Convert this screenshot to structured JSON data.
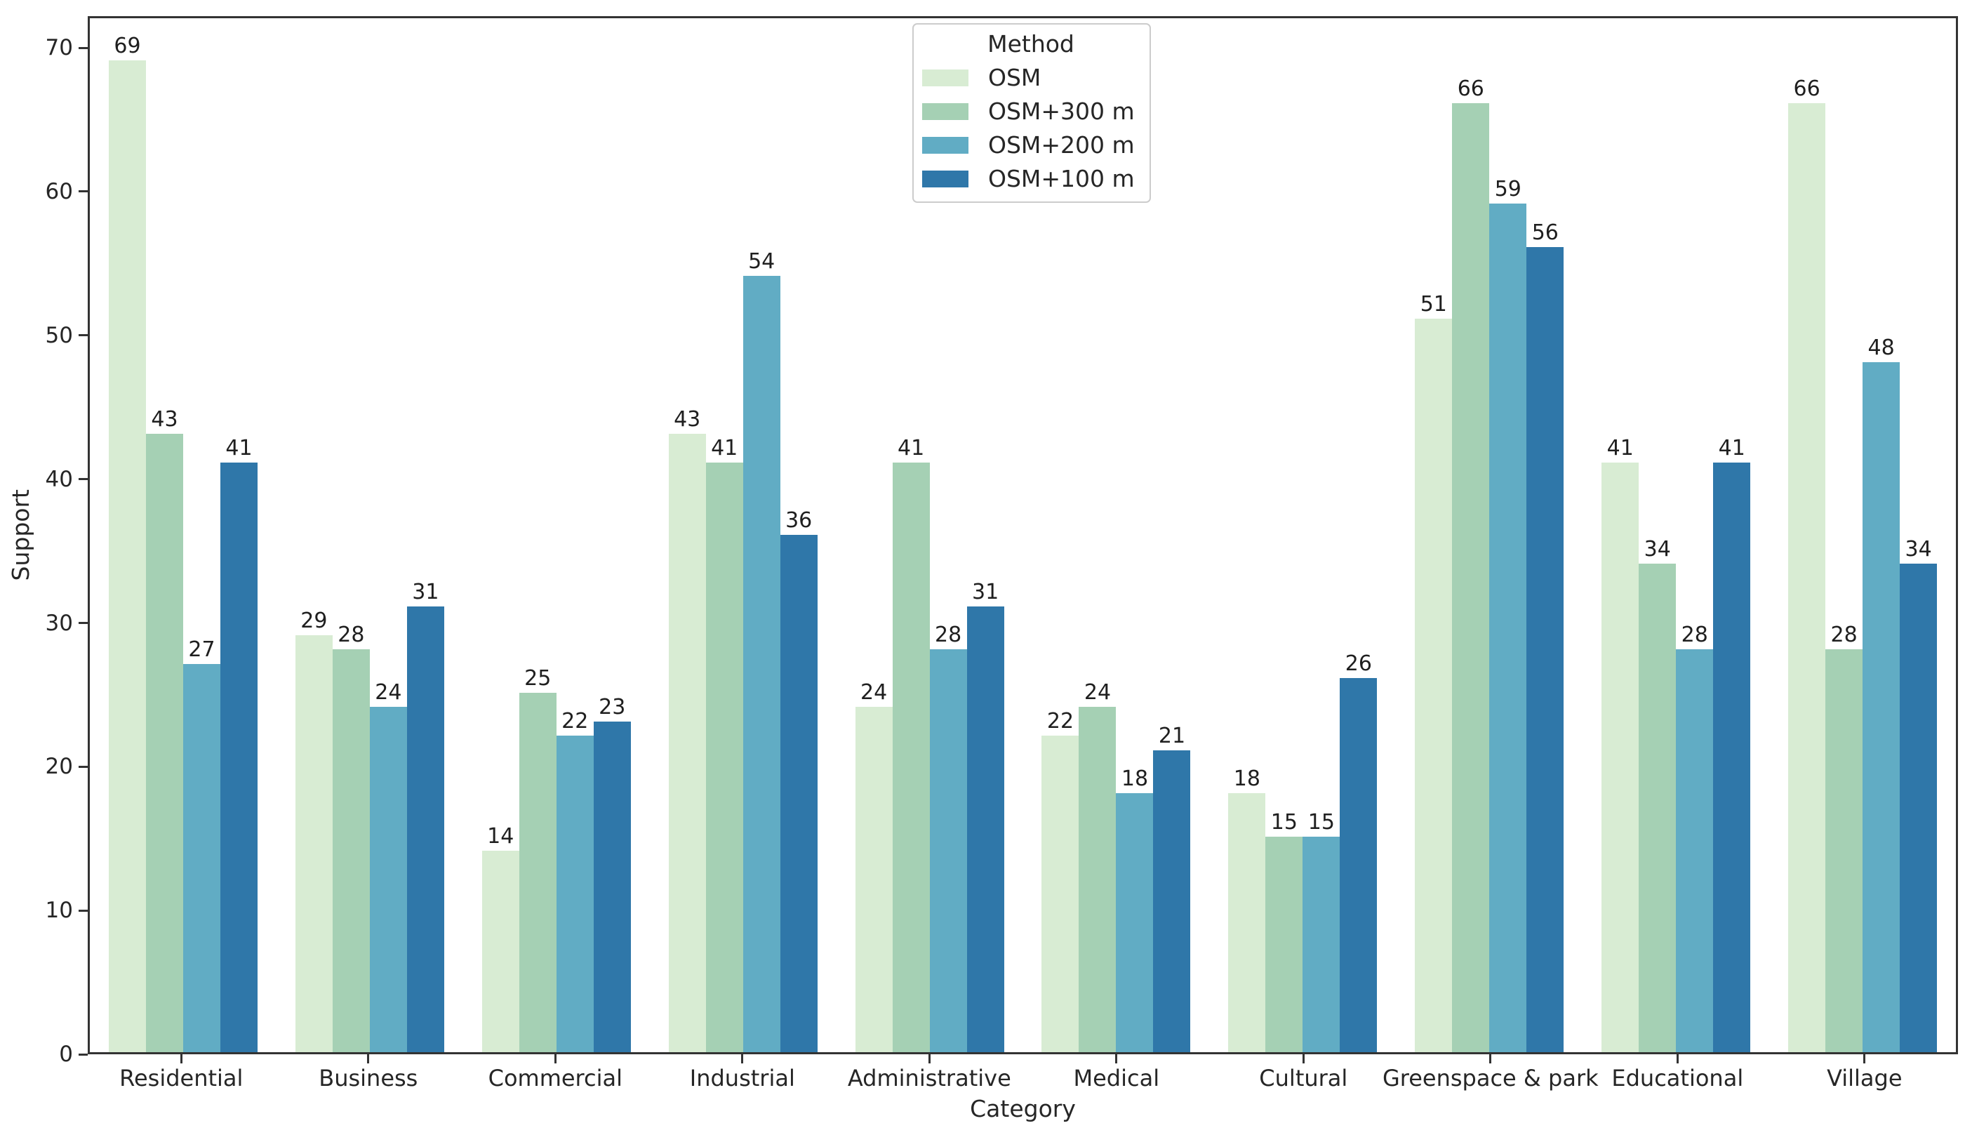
{
  "figure": {
    "xlabel": "Category",
    "ylabel": "Support",
    "legend_title": "Method"
  },
  "chart_data": {
    "type": "bar",
    "title": "",
    "xlabel": "Category",
    "ylabel": "Support",
    "ylim": [
      0,
      72.2
    ],
    "yticks": [
      0,
      10,
      20,
      30,
      40,
      50,
      60,
      70
    ],
    "grid": false,
    "bar_value_labels": true,
    "legend": {
      "title": "Method",
      "position": "upper center",
      "entries": [
        "OSM",
        "OSM+300 m",
        "OSM+200 m",
        "OSM+100 m"
      ]
    },
    "categories": [
      "Residential",
      "Business",
      "Commercial",
      "Industrial",
      "Administrative",
      "Medical",
      "Cultural",
      "Greenspace & park",
      "Educational",
      "Village"
    ],
    "series": [
      {
        "name": "OSM",
        "color": "#d8ecd3",
        "values": [
          69,
          29,
          14,
          43,
          24,
          22,
          18,
          51,
          41,
          66
        ]
      },
      {
        "name": "OSM+300 m",
        "color": "#a5d0b4",
        "values": [
          43,
          28,
          25,
          41,
          41,
          24,
          15,
          66,
          34,
          28
        ]
      },
      {
        "name": "OSM+200 m",
        "color": "#61acc4",
        "values": [
          27,
          24,
          22,
          54,
          28,
          18,
          15,
          59,
          28,
          48
        ]
      },
      {
        "name": "OSM+100 m",
        "color": "#2f77a9",
        "values": [
          41,
          31,
          23,
          36,
          31,
          21,
          26,
          56,
          41,
          34
        ]
      }
    ]
  }
}
